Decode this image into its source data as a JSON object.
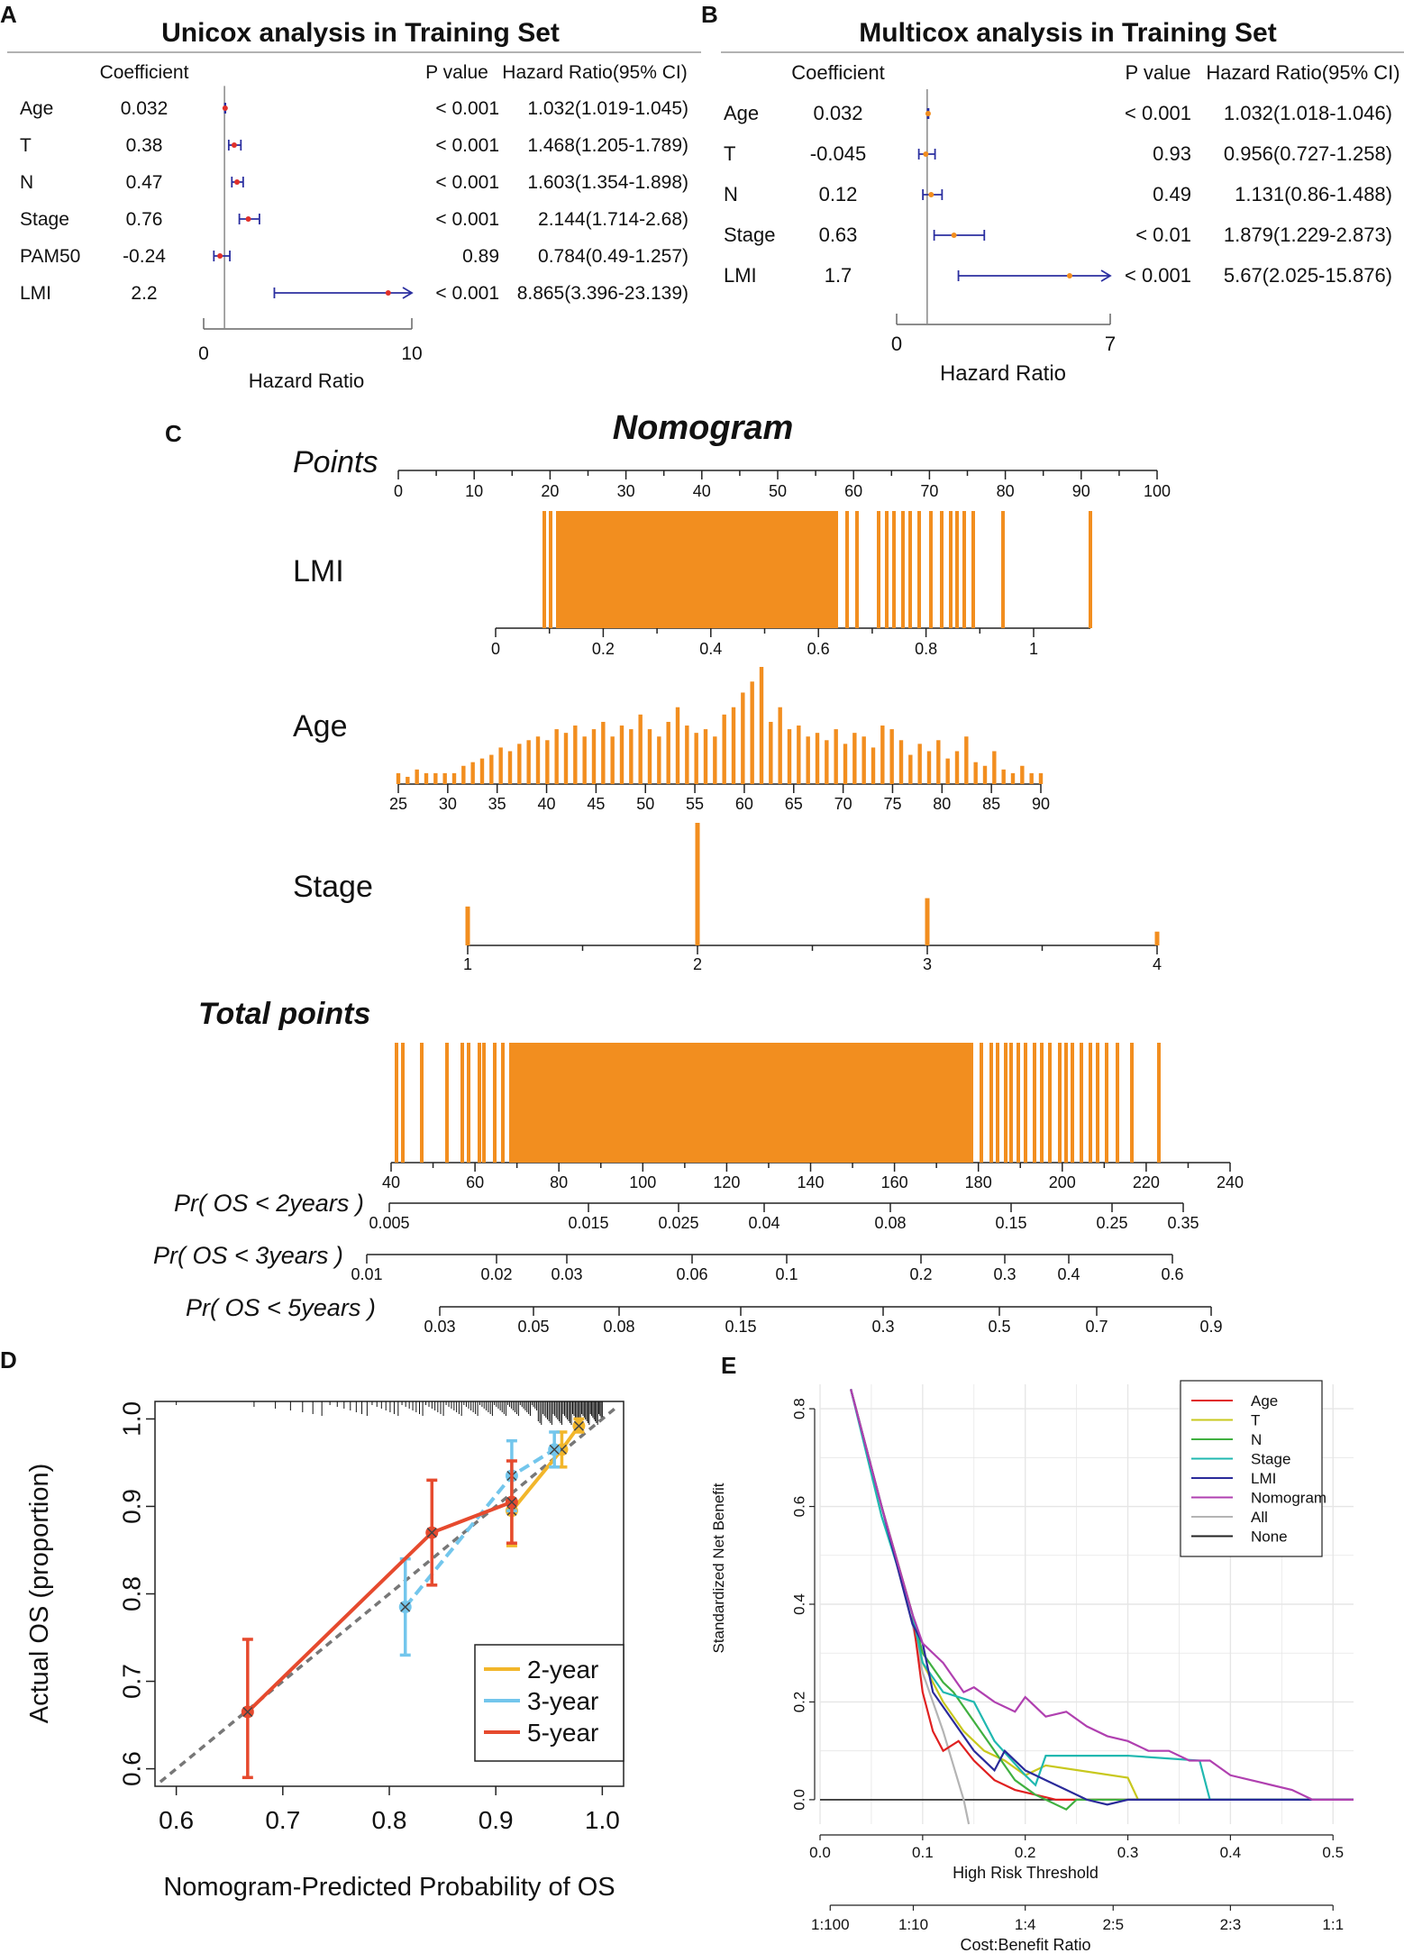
{
  "colors": {
    "orange": "#f28e1f",
    "ci_blue": "#2b2fa0",
    "point_red": "#e0302a",
    "cal_2y": "#f2b62b",
    "cal_3y": "#73c6ec",
    "cal_5y": "#e64a2e",
    "grid": "#e6e6e6"
  },
  "panelA": {
    "letter": "A",
    "title": "Unicox analysis in Training Set",
    "col_coef": "Coefficient",
    "col_p": "P value",
    "col_hr": "Hazard Ratio(95% CI)",
    "axis_label": "Hazard Ratio",
    "tick_min": "0",
    "tick_max": "10",
    "rows": [
      {
        "name": "Age",
        "coef": "0.032",
        "p": "< 0.001",
        "hr_text": "1.032(1.019-1.045)"
      },
      {
        "name": "T",
        "coef": "0.38",
        "p": "< 0.001",
        "hr_text": "1.468(1.205-1.789)"
      },
      {
        "name": "N",
        "coef": "0.47",
        "p": "< 0.001",
        "hr_text": "1.603(1.354-1.898)"
      },
      {
        "name": "Stage",
        "coef": "0.76",
        "p": "< 0.001",
        "hr_text": "2.144(1.714-2.68)"
      },
      {
        "name": "PAM50",
        "coef": "-0.24",
        "p": "0.89",
        "hr_text": "0.784(0.49-1.257)"
      },
      {
        "name": "LMI",
        "coef": "2.2",
        "p": "< 0.001",
        "hr_text": "8.865(3.396-23.139)"
      }
    ]
  },
  "panelB": {
    "letter": "B",
    "title": "Multicox analysis in Training Set",
    "col_coef": "Coefficient",
    "col_p": "P value",
    "col_hr": "Hazard Ratio(95% CI)",
    "axis_label": "Hazard Ratio",
    "tick_min": "0",
    "tick_max": "7",
    "rows": [
      {
        "name": "Age",
        "coef": "0.032",
        "p": "< 0.001",
        "hr_text": "1.032(1.018-1.046)"
      },
      {
        "name": "T",
        "coef": "-0.045",
        "p": "0.93",
        "hr_text": "0.956(0.727-1.258)"
      },
      {
        "name": "N",
        "coef": "0.12",
        "p": "0.49",
        "hr_text": "1.131(0.86-1.488)"
      },
      {
        "name": "Stage",
        "coef": "0.63",
        "p": "< 0.01",
        "hr_text": "1.879(1.229-2.873)"
      },
      {
        "name": "LMI",
        "coef": "1.7",
        "p": "< 0.001",
        "hr_text": "5.67(2.025-15.876)"
      }
    ]
  },
  "panelC": {
    "letter": "C",
    "title": "Nomogram",
    "points_label": "Points",
    "total_label": "Total points",
    "lmi_label": "LMI",
    "age_label": "Age",
    "stage_label": "Stage",
    "os2_label": "Pr( OS < 2years )",
    "os3_label": "Pr( OS < 3years )",
    "os5_label": "Pr( OS < 5years )"
  },
  "panelD": {
    "letter": "D",
    "xlabel": "Nomogram-Predicted Probability of OS",
    "ylabel": "Actual OS (proportion)",
    "legend_2y": "2-year",
    "legend_3y": "3-year",
    "legend_5y": "5-year"
  },
  "panelE": {
    "letter": "E",
    "xlabel": "High Risk Threshold",
    "ylabel": "Standardized Net Benefit",
    "xlabel2": "Cost:Benefit Ratio",
    "legend": [
      "Age",
      "T",
      "N",
      "Stage",
      "LMI",
      "Nomogram",
      "All",
      "None"
    ]
  },
  "chart_data": [
    {
      "type": "forest",
      "id": "A",
      "title": "Unicox analysis in Training Set",
      "xlabel": "Hazard Ratio",
      "xlim": [
        0,
        10
      ],
      "reference": 1,
      "rows": [
        {
          "name": "Age",
          "hr": 1.032,
          "lo": 1.019,
          "hi": 1.045
        },
        {
          "name": "T",
          "hr": 1.468,
          "lo": 1.205,
          "hi": 1.789
        },
        {
          "name": "N",
          "hr": 1.603,
          "lo": 1.354,
          "hi": 1.898
        },
        {
          "name": "Stage",
          "hr": 2.144,
          "lo": 1.714,
          "hi": 2.68
        },
        {
          "name": "PAM50",
          "hr": 0.784,
          "lo": 0.49,
          "hi": 1.257
        },
        {
          "name": "LMI",
          "hr": 8.865,
          "lo": 3.396,
          "hi": 23.139
        }
      ]
    },
    {
      "type": "forest",
      "id": "B",
      "title": "Multicox analysis in Training Set",
      "xlabel": "Hazard Ratio",
      "xlim": [
        0,
        7
      ],
      "reference": 1,
      "rows": [
        {
          "name": "Age",
          "hr": 1.032,
          "lo": 1.018,
          "hi": 1.046
        },
        {
          "name": "T",
          "hr": 0.956,
          "lo": 0.727,
          "hi": 1.258
        },
        {
          "name": "N",
          "hr": 1.131,
          "lo": 0.86,
          "hi": 1.488
        },
        {
          "name": "Stage",
          "hr": 1.879,
          "lo": 1.229,
          "hi": 2.873
        },
        {
          "name": "LMI",
          "hr": 5.67,
          "lo": 2.025,
          "hi": 15.876
        }
      ]
    },
    {
      "type": "nomogram",
      "id": "C",
      "title": "Nomogram",
      "points_ticks": [
        "0",
        "10",
        "20",
        "30",
        "40",
        "50",
        "60",
        "70",
        "80",
        "90",
        "100"
      ],
      "lmi": {
        "ticks": [
          "0",
          "0.2",
          "0.4",
          "0.6",
          "0.8",
          "1"
        ],
        "range": [
          0,
          1.1
        ]
      },
      "age": {
        "ticks": [
          "25",
          "30",
          "35",
          "40",
          "45",
          "50",
          "55",
          "60",
          "65",
          "70",
          "75",
          "80",
          "85",
          "90"
        ],
        "counts": [
          2,
          1,
          3,
          2,
          2,
          2,
          2,
          4,
          5,
          6,
          7,
          9,
          8,
          10,
          11,
          12,
          11,
          14,
          13,
          15,
          12,
          14,
          16,
          12,
          15,
          14,
          18,
          14,
          12,
          16,
          20,
          15,
          13,
          14,
          12,
          18,
          20,
          24,
          27,
          31,
          16,
          20,
          14,
          15,
          12,
          13,
          11,
          14,
          10,
          13,
          12,
          9,
          15,
          14,
          11,
          7,
          10,
          8,
          11,
          6,
          8,
          12,
          5,
          4,
          8,
          3,
          2,
          4,
          2,
          2
        ]
      },
      "stage": {
        "ticks": [
          "1",
          "2",
          "3",
          "4"
        ],
        "counts": [
          4,
          14,
          5,
          1
        ]
      },
      "total_ticks": [
        "40",
        "60",
        "80",
        "100",
        "120",
        "140",
        "160",
        "180",
        "200",
        "220",
        "240"
      ],
      "total_range": [
        40,
        240
      ],
      "os2_ticks": [
        "0.005",
        "0.015",
        "0.025",
        "0.04",
        "0.08",
        "0.15",
        "0.25",
        "0.35"
      ],
      "os3_ticks": [
        "0.01",
        "0.02",
        "0.03",
        "0.06",
        "0.1",
        "0.2",
        "0.3",
        "0.4",
        "0.6"
      ],
      "os5_ticks": [
        "0.03",
        "0.05",
        "0.08",
        "0.15",
        "0.3",
        "0.5",
        "0.7",
        "0.9"
      ]
    },
    {
      "type": "line",
      "id": "D",
      "xlabel": "Nomogram-Predicted Probability of OS",
      "ylabel": "Actual OS (proportion)",
      "xlim": [
        0.58,
        1.02
      ],
      "ylim": [
        0.58,
        1.02
      ],
      "xticks": [
        "0.6",
        "0.7",
        "0.8",
        "0.9",
        "1.0"
      ],
      "yticks": [
        "0.6",
        "0.7",
        "0.8",
        "0.9",
        "1.0"
      ],
      "series": [
        {
          "name": "2-year",
          "points": [
            {
              "x": 0.915,
              "y": 0.895,
              "lo": 0.855,
              "hi": 0.935
            },
            {
              "x": 0.962,
              "y": 0.965,
              "lo": 0.945,
              "hi": 0.985
            },
            {
              "x": 0.978,
              "y": 0.992,
              "lo": 0.985,
              "hi": 1.0
            }
          ]
        },
        {
          "name": "3-year",
          "points": [
            {
              "x": 0.815,
              "y": 0.785,
              "lo": 0.73,
              "hi": 0.84
            },
            {
              "x": 0.915,
              "y": 0.935,
              "lo": 0.895,
              "hi": 0.975
            },
            {
              "x": 0.955,
              "y": 0.965,
              "lo": 0.945,
              "hi": 0.985
            }
          ]
        },
        {
          "name": "5-year",
          "points": [
            {
              "x": 0.667,
              "y": 0.665,
              "lo": 0.59,
              "hi": 0.748
            },
            {
              "x": 0.84,
              "y": 0.87,
              "lo": 0.81,
              "hi": 0.93
            },
            {
              "x": 0.915,
              "y": 0.905,
              "lo": 0.858,
              "hi": 0.952
            }
          ]
        }
      ]
    },
    {
      "type": "line",
      "id": "E",
      "xlabel": "High Risk Threshold",
      "ylabel": "Standardized Net Benefit",
      "xlim": [
        0,
        0.52
      ],
      "ylim": [
        -0.05,
        0.85
      ],
      "xticks": [
        "0.0",
        "0.1",
        "0.2",
        "0.3",
        "0.4",
        "0.5"
      ],
      "yticks": [
        "0.0",
        "0.2",
        "0.4",
        "0.6",
        "0.8"
      ],
      "cost_benefit_ticks": [
        "1:100",
        "1:10",
        "1:4",
        "2:5",
        "2:3",
        "1:1"
      ],
      "series": [
        {
          "name": "Age",
          "color": "#e02020",
          "points": [
            [
              0.03,
              0.84
            ],
            [
              0.06,
              0.6
            ],
            [
              0.09,
              0.38
            ],
            [
              0.1,
              0.22
            ],
            [
              0.11,
              0.14
            ],
            [
              0.12,
              0.1
            ],
            [
              0.135,
              0.12
            ],
            [
              0.15,
              0.08
            ],
            [
              0.17,
              0.04
            ],
            [
              0.19,
              0.02
            ],
            [
              0.21,
              0.01
            ],
            [
              0.23,
              0.0
            ],
            [
              0.3,
              0.0
            ],
            [
              0.52,
              0.0
            ]
          ]
        },
        {
          "name": "T",
          "color": "#c8c81e",
          "points": [
            [
              0.03,
              0.84
            ],
            [
              0.06,
              0.6
            ],
            [
              0.09,
              0.38
            ],
            [
              0.1,
              0.28
            ],
            [
              0.12,
              0.2
            ],
            [
              0.14,
              0.14
            ],
            [
              0.16,
              0.1
            ],
            [
              0.18,
              0.08
            ],
            [
              0.2,
              0.05
            ],
            [
              0.22,
              0.07
            ],
            [
              0.3,
              0.045
            ],
            [
              0.31,
              0.0
            ],
            [
              0.52,
              0.0
            ]
          ]
        },
        {
          "name": "N",
          "color": "#40b040",
          "points": [
            [
              0.03,
              0.84
            ],
            [
              0.06,
              0.6
            ],
            [
              0.09,
              0.38
            ],
            [
              0.1,
              0.3
            ],
            [
              0.12,
              0.24
            ],
            [
              0.13,
              0.22
            ],
            [
              0.15,
              0.16
            ],
            [
              0.17,
              0.1
            ],
            [
              0.19,
              0.04
            ],
            [
              0.21,
              0.01
            ],
            [
              0.24,
              -0.02
            ],
            [
              0.25,
              0.0
            ],
            [
              0.52,
              0.0
            ]
          ]
        },
        {
          "name": "Stage",
          "color": "#20b8b0",
          "points": [
            [
              0.03,
              0.84
            ],
            [
              0.06,
              0.58
            ],
            [
              0.09,
              0.38
            ],
            [
              0.1,
              0.28
            ],
            [
              0.12,
              0.22
            ],
            [
              0.15,
              0.2
            ],
            [
              0.17,
              0.12
            ],
            [
              0.2,
              0.05
            ],
            [
              0.21,
              0.03
            ],
            [
              0.22,
              0.09
            ],
            [
              0.3,
              0.09
            ],
            [
              0.37,
              0.08
            ],
            [
              0.38,
              0.0
            ],
            [
              0.52,
              0.0
            ]
          ]
        },
        {
          "name": "LMI",
          "color": "#2a2a9a",
          "points": [
            [
              0.03,
              0.84
            ],
            [
              0.06,
              0.6
            ],
            [
              0.09,
              0.36
            ],
            [
              0.1,
              0.32
            ],
            [
              0.11,
              0.22
            ],
            [
              0.13,
              0.16
            ],
            [
              0.15,
              0.1
            ],
            [
              0.17,
              0.06
            ],
            [
              0.18,
              0.1
            ],
            [
              0.2,
              0.06
            ],
            [
              0.22,
              0.04
            ],
            [
              0.24,
              0.02
            ],
            [
              0.26,
              0.0
            ],
            [
              0.28,
              -0.01
            ],
            [
              0.3,
              0.0
            ],
            [
              0.52,
              0.0
            ]
          ]
        },
        {
          "name": "Nomogram",
          "color": "#b040b0",
          "points": [
            [
              0.03,
              0.84
            ],
            [
              0.06,
              0.6
            ],
            [
              0.09,
              0.38
            ],
            [
              0.1,
              0.32
            ],
            [
              0.12,
              0.28
            ],
            [
              0.14,
              0.22
            ],
            [
              0.15,
              0.23
            ],
            [
              0.17,
              0.2
            ],
            [
              0.19,
              0.18
            ],
            [
              0.2,
              0.21
            ],
            [
              0.22,
              0.17
            ],
            [
              0.24,
              0.18
            ],
            [
              0.26,
              0.15
            ],
            [
              0.28,
              0.13
            ],
            [
              0.3,
              0.12
            ],
            [
              0.32,
              0.1
            ],
            [
              0.34,
              0.1
            ],
            [
              0.36,
              0.08
            ],
            [
              0.38,
              0.08
            ],
            [
              0.4,
              0.05
            ],
            [
              0.42,
              0.04
            ],
            [
              0.44,
              0.03
            ],
            [
              0.46,
              0.02
            ],
            [
              0.48,
              0.0
            ],
            [
              0.52,
              0.0
            ]
          ]
        },
        {
          "name": "All",
          "color": "#b4b4b4",
          "points": [
            [
              0.03,
              0.84
            ],
            [
              0.06,
              0.6
            ],
            [
              0.09,
              0.36
            ],
            [
              0.1,
              0.26
            ],
            [
              0.12,
              0.14
            ],
            [
              0.13,
              0.07
            ],
            [
              0.14,
              0.0
            ],
            [
              0.145,
              -0.05
            ]
          ]
        },
        {
          "name": "None",
          "color": "#222222",
          "points": [
            [
              0.0,
              0.0
            ],
            [
              0.52,
              0.0
            ]
          ]
        }
      ]
    }
  ]
}
